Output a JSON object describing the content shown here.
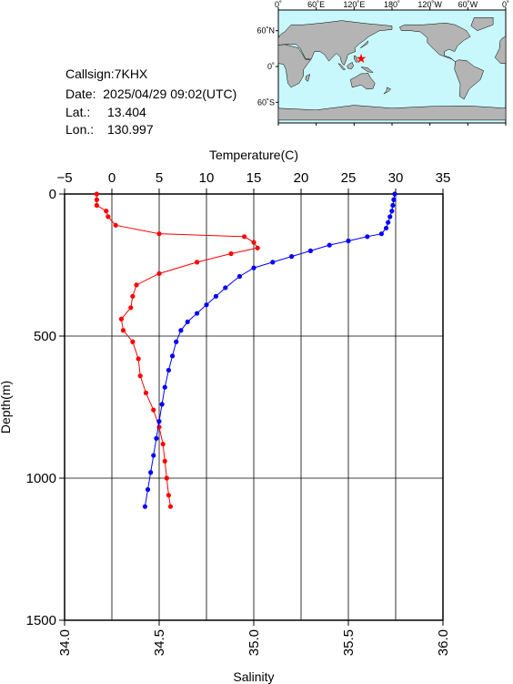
{
  "info": {
    "callsign": "Callsign:7KHX",
    "date": "Date:  2025/04/29 09:02(UTC)",
    "lat_label": "Lat.:",
    "lat_value": "13.404",
    "lon_label": "Lon.:",
    "lon_value": "130.997"
  },
  "map": {
    "lon_ticks": [
      "0˚",
      "60˚E",
      "120˚E",
      "180˚",
      "120˚W",
      "60˚W",
      "0˚"
    ],
    "lat_ticks": [
      "60˚N",
      "0˚",
      "60˚S"
    ],
    "station": {
      "lon": 130.997,
      "lat": 13.404
    },
    "ocean_color": "#c8f8fc",
    "land_color": "#b4b4b4",
    "marker_color": "#ff0000"
  },
  "chart_data": {
    "type": "scatter",
    "ylabel": "Depth(m)",
    "ylim": [
      1500,
      0
    ],
    "y_ticks": [
      "0",
      "500",
      "1000",
      "1500"
    ],
    "y_tick_values": [
      0,
      500,
      1000,
      1500
    ],
    "top_axis": {
      "label": "Temperature(C)",
      "range": [
        -5,
        35
      ],
      "ticks": [
        "−5",
        "0",
        "5",
        "10",
        "15",
        "20",
        "25",
        "30",
        "35"
      ],
      "tick_values": [
        -5,
        0,
        5,
        10,
        15,
        20,
        25,
        30,
        35
      ]
    },
    "bottom_axis": {
      "label": "Salinity",
      "range": [
        34.0,
        36.0
      ],
      "ticks": [
        "34.0",
        "34.5",
        "35.0",
        "35.5",
        "36.0"
      ],
      "tick_values": [
        34.0,
        34.5,
        35.0,
        35.5,
        36.0
      ]
    },
    "grid": true,
    "series": [
      {
        "axis": "temperature",
        "color": "#0000ff",
        "points": [
          [
            29.9,
            0
          ],
          [
            29.8,
            20
          ],
          [
            29.7,
            40
          ],
          [
            29.6,
            60
          ],
          [
            29.4,
            80
          ],
          [
            29.2,
            100
          ],
          [
            29.0,
            120
          ],
          [
            28.5,
            140
          ],
          [
            27.0,
            150
          ],
          [
            25.0,
            165
          ],
          [
            23.0,
            180
          ],
          [
            21.0,
            200
          ],
          [
            19.0,
            220
          ],
          [
            17.0,
            240
          ],
          [
            15.0,
            260
          ],
          [
            13.5,
            290
          ],
          [
            12.0,
            330
          ],
          [
            11.0,
            360
          ],
          [
            10.0,
            390
          ],
          [
            9.0,
            420
          ],
          [
            8.0,
            450
          ],
          [
            7.3,
            480
          ],
          [
            6.8,
            520
          ],
          [
            6.4,
            570
          ],
          [
            6.0,
            620
          ],
          [
            5.6,
            680
          ],
          [
            5.3,
            740
          ],
          [
            5.0,
            800
          ],
          [
            4.7,
            860
          ],
          [
            4.4,
            920
          ],
          [
            4.1,
            980
          ],
          [
            3.8,
            1040
          ],
          [
            3.5,
            1100
          ]
        ]
      },
      {
        "axis": "salinity",
        "color": "#ff0000",
        "points": [
          [
            34.17,
            0
          ],
          [
            34.17,
            20
          ],
          [
            34.17,
            40
          ],
          [
            34.22,
            60
          ],
          [
            34.23,
            80
          ],
          [
            34.27,
            110
          ],
          [
            34.5,
            140
          ],
          [
            34.95,
            150
          ],
          [
            35.0,
            170
          ],
          [
            35.02,
            190
          ],
          [
            34.88,
            210
          ],
          [
            34.7,
            240
          ],
          [
            34.5,
            280
          ],
          [
            34.38,
            320
          ],
          [
            34.36,
            360
          ],
          [
            34.35,
            400
          ],
          [
            34.3,
            440
          ],
          [
            34.31,
            480
          ],
          [
            34.36,
            520
          ],
          [
            34.39,
            580
          ],
          [
            34.4,
            640
          ],
          [
            34.43,
            700
          ],
          [
            34.47,
            760
          ],
          [
            34.5,
            820
          ],
          [
            34.52,
            880
          ],
          [
            34.53,
            940
          ],
          [
            34.54,
            1000
          ],
          [
            34.55,
            1060
          ],
          [
            34.56,
            1100
          ]
        ]
      }
    ]
  }
}
